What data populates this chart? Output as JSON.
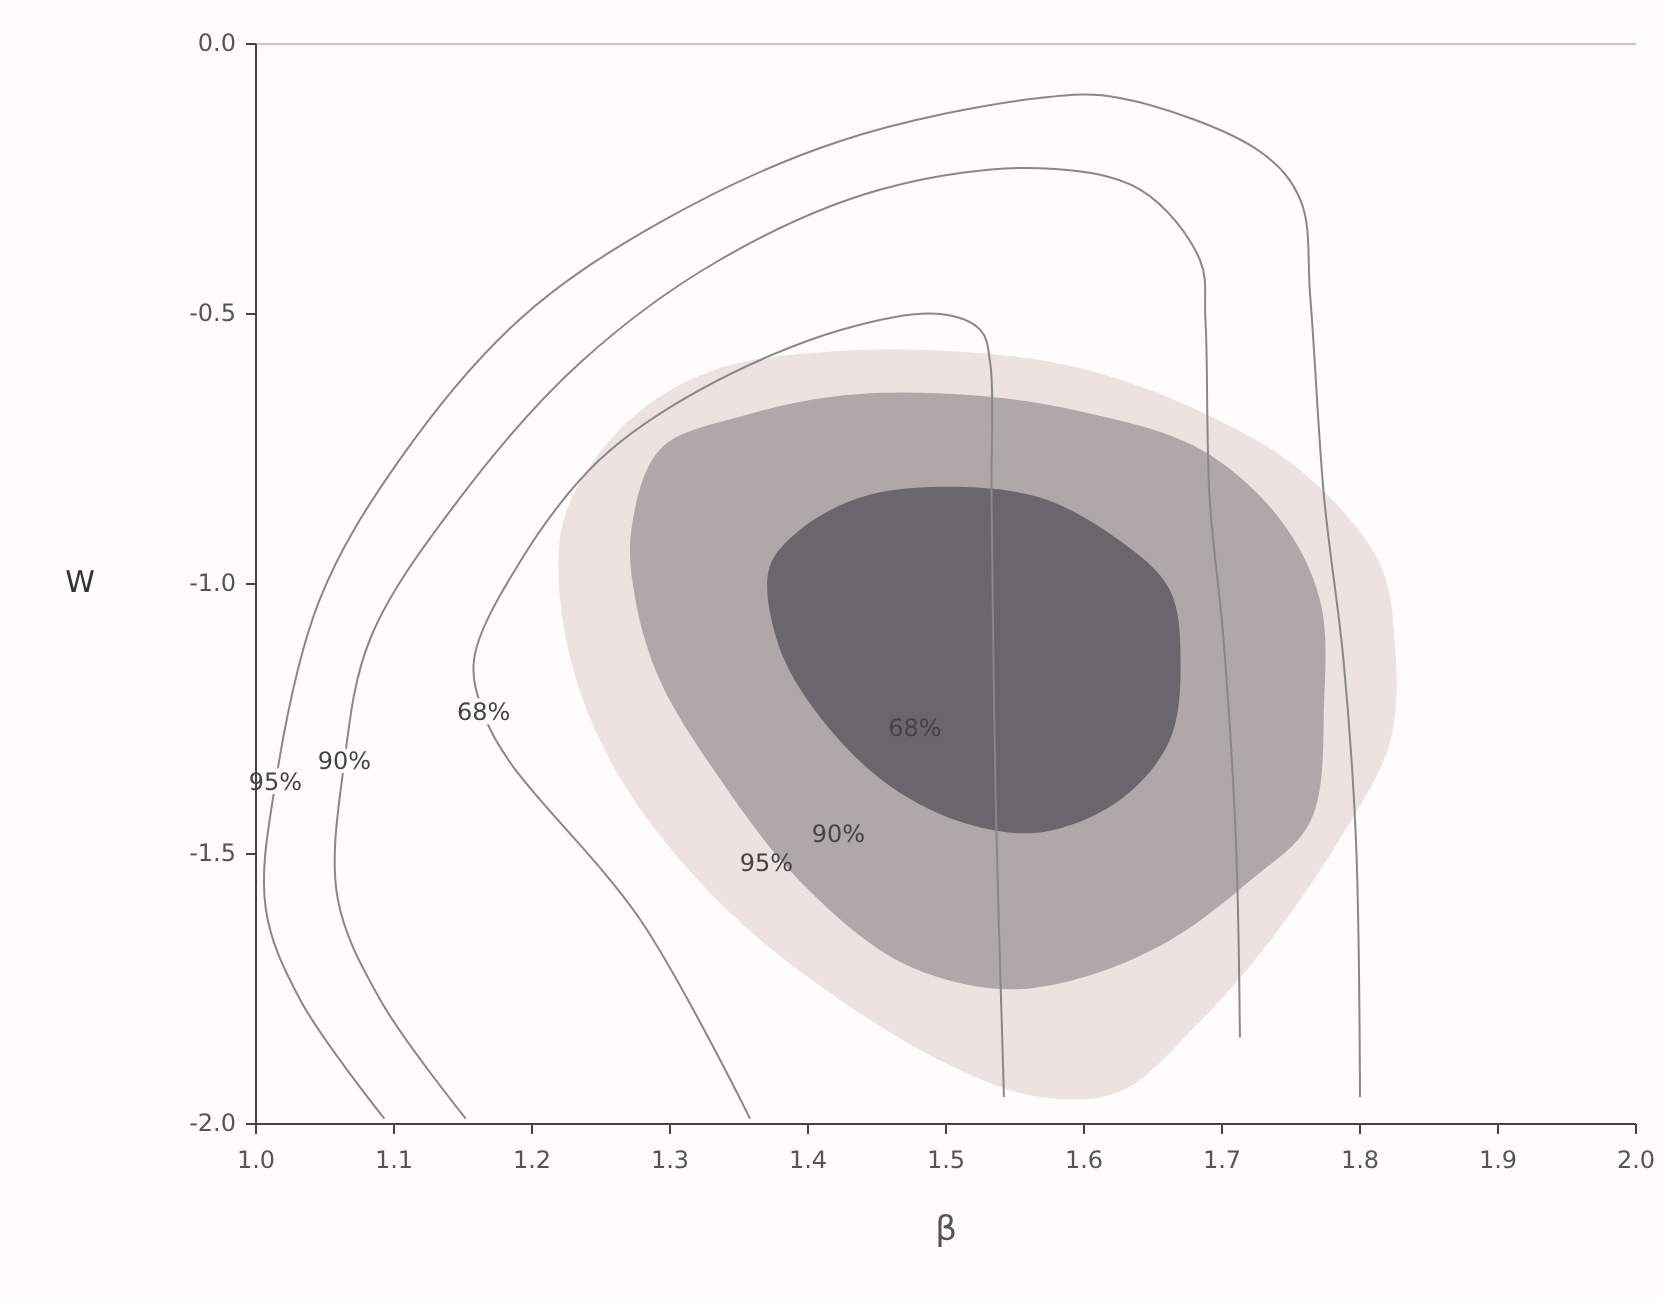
{
  "chart_data": {
    "type": "line",
    "xlabel": "β",
    "ylabel": "W",
    "xlim": [
      1,
      2
    ],
    "ylim": [
      -2,
      0
    ],
    "xticks": [
      {
        "value": 1,
        "label": "1.0"
      },
      1.1,
      1.2,
      1.3,
      1.4,
      1.5,
      1.6,
      1.7,
      1.8,
      1.9,
      {
        "value": 2,
        "label": "2.0"
      }
    ],
    "yticks": [
      {
        "value": 0,
        "label": "0.0"
      },
      -0.5,
      {
        "value": -1,
        "label": "-1.0"
      },
      -1.5,
      {
        "value": -2,
        "label": "-2.0"
      }
    ],
    "grid": false,
    "marker": "none",
    "line_style": "solid",
    "series": [
      {
        "type": "area",
        "name": "95%",
        "color": "#ece2df",
        "x": [
          1.22,
          1.235,
          1.278,
          1.336,
          1.414,
          1.51,
          1.597,
          1.684,
          1.757,
          1.814,
          1.825,
          1.822,
          1.786,
          1.735,
          1.684,
          1.626,
          1.568,
          1.51,
          1.423,
          1.336,
          1.264,
          1.228
        ],
        "values": [
          -0.92,
          -0.81,
          -0.68,
          -0.6,
          -0.57,
          -0.57,
          -0.6,
          -0.68,
          -0.79,
          -0.96,
          -1.1,
          -1.29,
          -1.47,
          -1.66,
          -1.81,
          -1.94,
          -1.95,
          -1.9,
          -1.77,
          -1.59,
          -1.36,
          -1.14
        ]
      },
      {
        "type": "area",
        "name": "90%",
        "color": "#b0a8a8",
        "x": [
          1.272,
          1.293,
          1.351,
          1.428,
          1.517,
          1.597,
          1.684,
          1.742,
          1.771,
          1.774,
          1.764,
          1.72,
          1.662,
          1.597,
          1.539,
          1.467,
          1.394,
          1.336,
          1.293,
          1.275
        ],
        "values": [
          -0.9,
          -0.75,
          -0.69,
          -0.65,
          -0.65,
          -0.68,
          -0.75,
          -0.88,
          -1.03,
          -1.22,
          -1.44,
          -1.55,
          -1.66,
          -1.73,
          -1.75,
          -1.7,
          -1.55,
          -1.36,
          -1.18,
          -1.03
        ]
      },
      {
        "type": "area",
        "name": "68%",
        "color": "#6a666b",
        "x": [
          1.372,
          1.394,
          1.438,
          1.496,
          1.568,
          1.626,
          1.662,
          1.67,
          1.662,
          1.626,
          1.568,
          1.51,
          1.452,
          1.401,
          1.377
        ],
        "values": [
          -0.97,
          -0.9,
          -0.84,
          -0.82,
          -0.84,
          -0.92,
          -1.01,
          -1.14,
          -1.29,
          -1.4,
          -1.46,
          -1.44,
          -1.36,
          -1.22,
          -1.1
        ]
      },
      {
        "color": "#888888",
        "x": [
          1.093,
          1.032,
          1.007,
          1.014,
          1.046,
          1.104,
          1.191,
          1.293,
          1.423,
          1.568,
          1.626,
          1.728,
          1.757,
          1.764,
          1.774,
          1.788,
          1.797,
          1.8
        ],
        "values": [
          -1.99,
          -1.77,
          -1.6,
          -1.37,
          -1.03,
          -0.77,
          -0.51,
          -0.33,
          -0.18,
          -0.1,
          -0.1,
          -0.2,
          -0.29,
          -0.47,
          -0.84,
          -1.14,
          -1.47,
          -1.95
        ]
      },
      {
        "color": "#888888",
        "x": [
          1.152,
          1.09,
          1.059,
          1.064,
          1.083,
          1.148,
          1.235,
          1.336,
          1.452,
          1.568,
          1.641,
          1.684,
          1.688,
          1.691,
          1.701,
          1.71,
          1.713
        ],
        "values": [
          -1.99,
          -1.77,
          -1.58,
          -1.33,
          -1.1,
          -0.84,
          -0.59,
          -0.4,
          -0.27,
          -0.23,
          -0.27,
          -0.4,
          -0.51,
          -0.84,
          -1.1,
          -1.47,
          -1.84
        ]
      },
      {
        "color": "#888888",
        "x": [
          1.358,
          1.278,
          1.184,
          1.165,
          1.158,
          1.191,
          1.249,
          1.322,
          1.423,
          1.496,
          1.525,
          1.532,
          1.533,
          1.536,
          1.542
        ],
        "values": [
          -1.99,
          -1.62,
          -1.33,
          -1.24,
          -1.14,
          -0.96,
          -0.77,
          -0.64,
          -0.53,
          -0.5,
          -0.53,
          -0.59,
          -0.84,
          -1.4,
          -1.95
        ]
      }
    ],
    "annotations": [
      {
        "text": "95%",
        "x": 1.014,
        "y": -1.37
      },
      {
        "text": "90%",
        "x": 1.064,
        "y": -1.33
      },
      {
        "text": "68%",
        "x": 1.165,
        "y": -1.24
      }
    ]
  }
}
